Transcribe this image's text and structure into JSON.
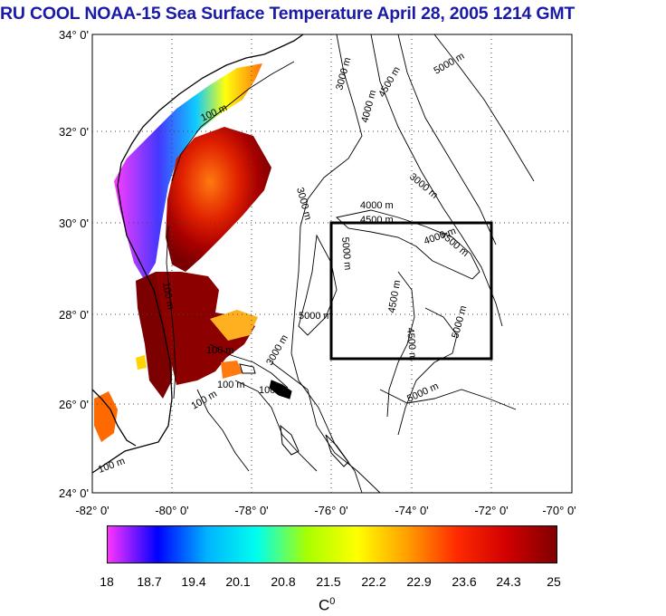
{
  "title": "RU COOL  NOAA-15 Sea Surface Temperature April 28, 2005 1214 GMT",
  "map": {
    "lat_labels": [
      "34° 0'",
      "32° 0'",
      "30° 0'",
      "28° 0'",
      "26° 0'",
      "24° 0'"
    ],
    "lon_labels": [
      "-82° 0'",
      "-80° 0'",
      "-78° 0'",
      "-76° 0'",
      "-74° 0'",
      "-72° 0'",
      "-70° 0'"
    ],
    "lat_range": [
      24,
      34
    ],
    "lon_range": [
      -82,
      -70
    ],
    "grid": "dotted",
    "study_box": {
      "lon": [
        -76,
        -72
      ],
      "lat": [
        27,
        30
      ]
    },
    "contour_labels": [
      "100 m",
      "100 m",
      "100 m",
      "100 m",
      "100 m",
      "100 m",
      "100 m",
      "3000 m",
      "3000 m",
      "3000 m",
      "3000 m",
      "4000 m",
      "4000 m",
      "4000 m",
      "4500 m",
      "4500 m",
      "4500 m",
      "4500 m",
      "4500 m",
      "5000 m",
      "5000 m",
      "5000 m",
      "5000 m",
      "5000 m"
    ]
  },
  "colorbar": {
    "ticks": [
      "18",
      "18.7",
      "19.4",
      "20.1",
      "20.8",
      "21.5",
      "22.2",
      "22.9",
      "23.6",
      "24.3",
      "25"
    ],
    "unit": "C",
    "unit_sup": "0",
    "colors": [
      "#ff33ff",
      "#0000ff",
      "#00b4ff",
      "#00ffee",
      "#a8ff00",
      "#ffff00",
      "#ff9f00",
      "#ff2a00",
      "#d10000",
      "#800000"
    ]
  }
}
